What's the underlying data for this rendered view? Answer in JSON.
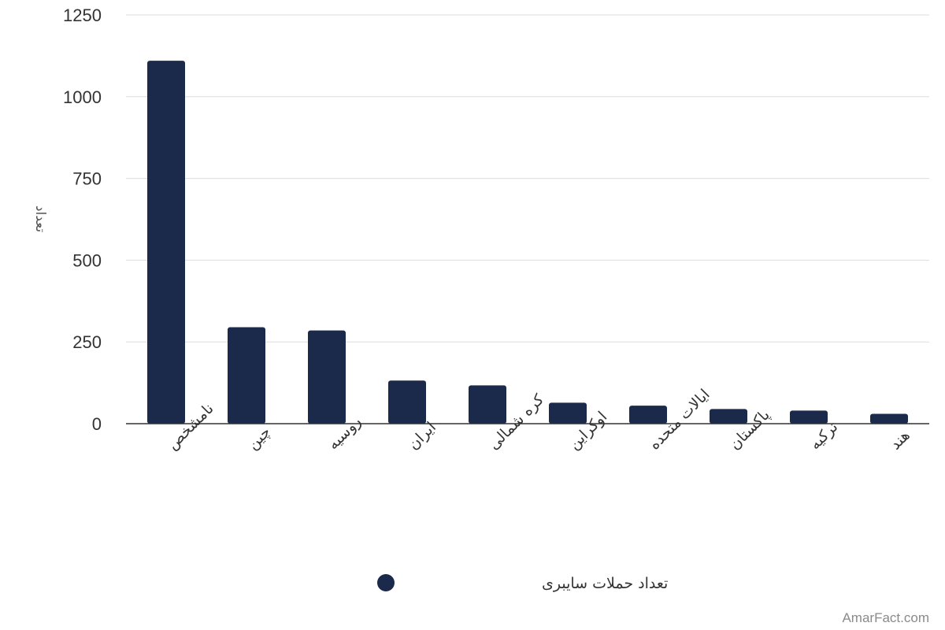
{
  "chart_data": {
    "type": "bar",
    "categories": [
      "نامشخص",
      "چین",
      "روسیه",
      "ایران",
      "کره شمالی",
      "اوکراین",
      "ایالات متحده",
      "پاکستان",
      "ترکیه",
      "هند"
    ],
    "series": [
      {
        "name": "تعداد حملات سایبری",
        "values": [
          1110,
          295,
          285,
          132,
          117,
          64,
          55,
          45,
          40,
          30
        ],
        "color": "#1b2a4a"
      }
    ],
    "ylabel": "تعداد",
    "xlabel": "",
    "ylim": [
      0,
      1250
    ],
    "yticks": [
      0,
      250,
      500,
      750,
      1000,
      1250
    ],
    "grid": true,
    "legend_position": "bottom-center"
  },
  "watermark": "AmarFact.com"
}
